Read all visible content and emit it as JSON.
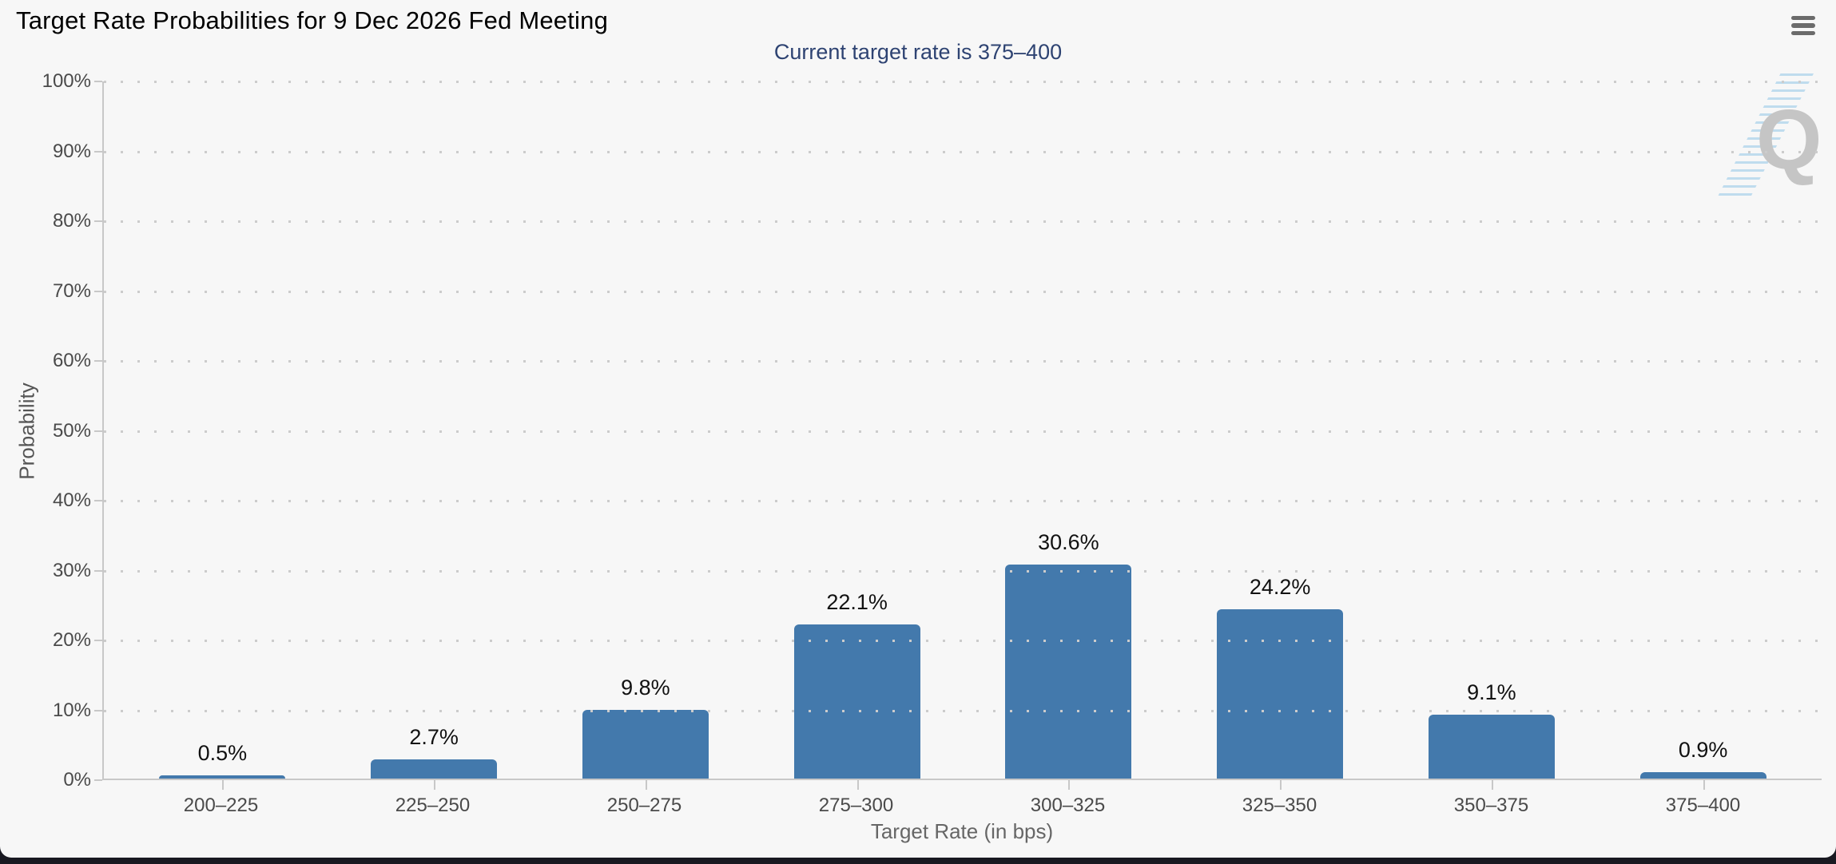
{
  "header": {
    "title": "Target Rate Probabilities for 9 Dec 2026 Fed Meeting",
    "menu_icon": "hamburger-icon"
  },
  "subtitle": "Current target rate is 375–400",
  "watermark": {
    "letter": "Q"
  },
  "chart_data": {
    "type": "bar",
    "title": "Target Rate Probabilities for 9 Dec 2026 Fed Meeting",
    "subtitle": "Current target rate is 375–400",
    "categories": [
      "200–225",
      "225–250",
      "250–275",
      "275–300",
      "300–325",
      "325–350",
      "350–375",
      "375–400"
    ],
    "values": [
      0.5,
      2.7,
      9.8,
      22.1,
      30.6,
      24.2,
      9.1,
      0.9
    ],
    "value_labels": [
      "0.5%",
      "2.7%",
      "9.8%",
      "22.1%",
      "30.6%",
      "24.2%",
      "9.1%",
      "0.9%"
    ],
    "xlabel": "Target Rate (in bps)",
    "ylabel": "Probability",
    "ylim": [
      0,
      100
    ],
    "ytick_step": 10,
    "ytick_labels": [
      "0%",
      "10%",
      "20%",
      "30%",
      "40%",
      "50%",
      "60%",
      "70%",
      "80%",
      "90%",
      "100%"
    ],
    "grid": "dotted-horizontal",
    "legend": "none",
    "bar_color": "#4379ac"
  },
  "colors": {
    "page_bg": "#191921",
    "panel_bg": "#f7f7f7",
    "bar": "#4379ac",
    "subtitle": "#2e4372",
    "grid_dot": "#cccccc",
    "axis_line": "#c8c8c8",
    "tick_label": "#4a4a4a",
    "value_label": "#111111",
    "axis_title": "#666666",
    "watermark_q": "#c5c5c5",
    "watermark_hatch": "#b5d7ec",
    "menu_icon": "#6b6b6b"
  }
}
